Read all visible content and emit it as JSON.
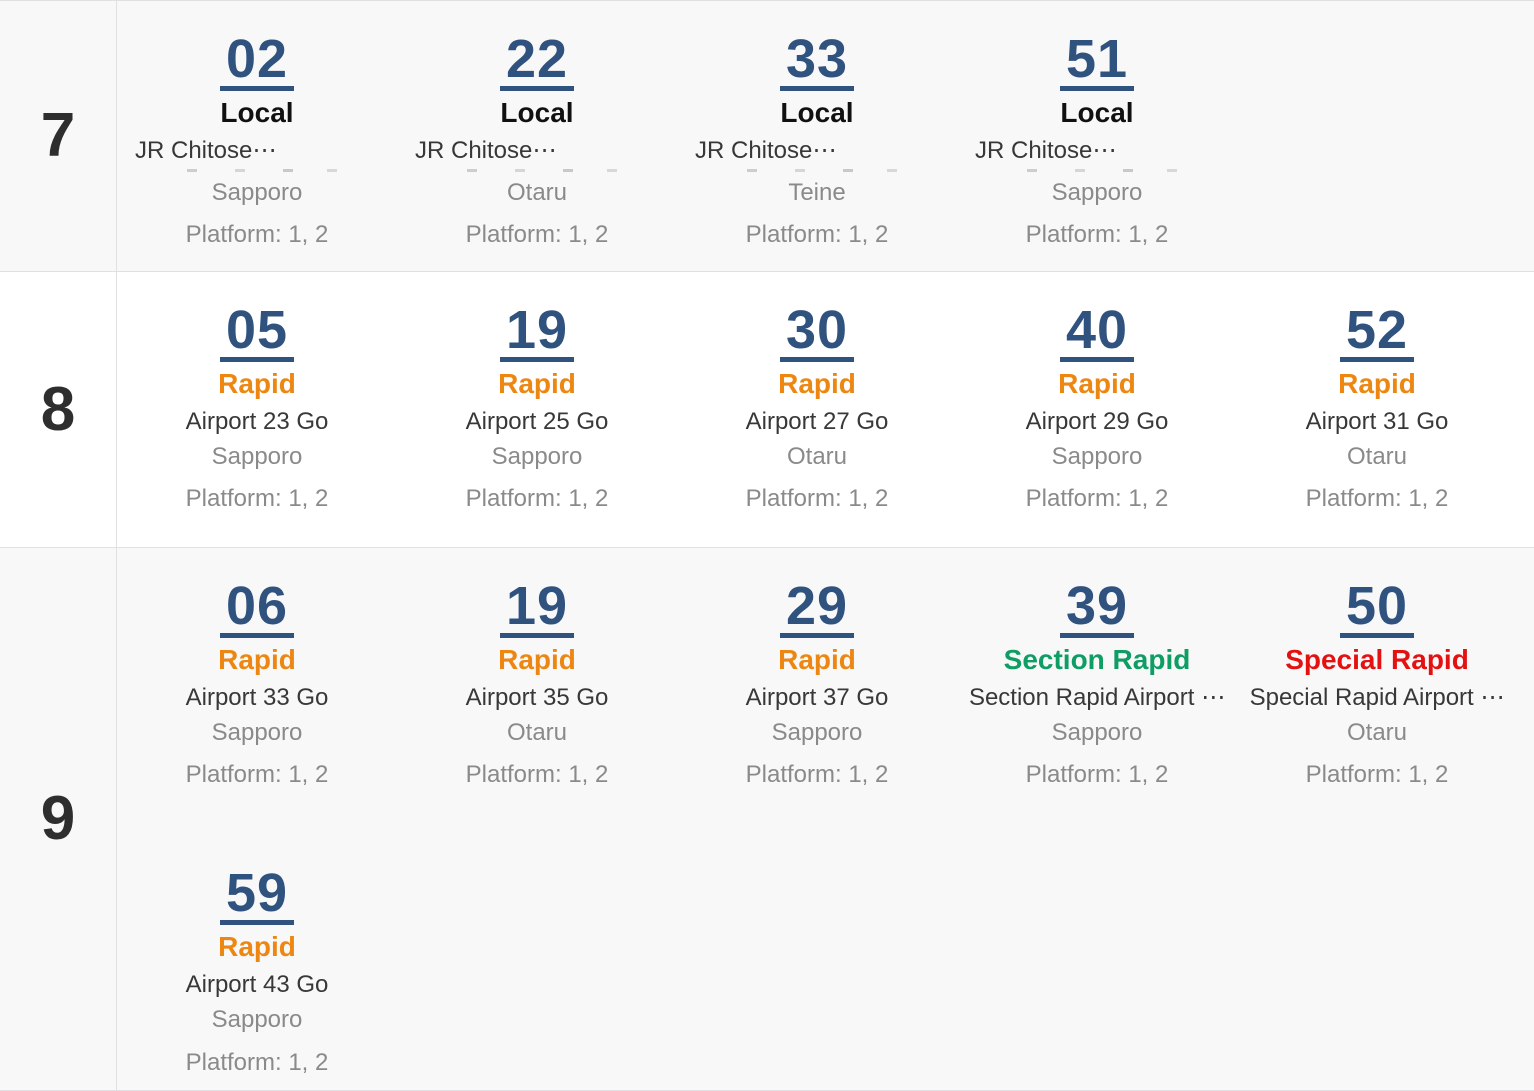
{
  "colors": {
    "minute_link": "#30527E",
    "local": "#111111",
    "rapid": "#ED8712",
    "section_rapid": "#0E9D63",
    "special_rapid": "#E41111",
    "hour_label": "#2E2E2E",
    "train_name": "#383838",
    "secondary_text": "#8A8A8A",
    "row_alt_background": "#F8F8F9",
    "border": "#E1E1E3"
  },
  "timetable": {
    "hours": [
      {
        "hour": "7",
        "trains": [
          {
            "minute": "02",
            "type": "Local",
            "type_key": "local",
            "name": "JR Chitose⋯",
            "name_clipped": true,
            "destination": "Sapporo",
            "platform": "Platform: 1, 2"
          },
          {
            "minute": "22",
            "type": "Local",
            "type_key": "local",
            "name": "JR Chitose⋯",
            "name_clipped": true,
            "destination": "Otaru",
            "platform": "Platform: 1, 2"
          },
          {
            "minute": "33",
            "type": "Local",
            "type_key": "local",
            "name": "JR Chitose⋯",
            "name_clipped": true,
            "destination": "Teine",
            "platform": "Platform: 1, 2"
          },
          {
            "minute": "51",
            "type": "Local",
            "type_key": "local",
            "name": "JR Chitose⋯",
            "name_clipped": true,
            "destination": "Sapporo",
            "platform": "Platform: 1, 2"
          }
        ]
      },
      {
        "hour": "8",
        "trains": [
          {
            "minute": "05",
            "type": "Rapid",
            "type_key": "rapid",
            "name": "Airport 23 Go",
            "name_clipped": false,
            "destination": "Sapporo",
            "platform": "Platform: 1, 2"
          },
          {
            "minute": "19",
            "type": "Rapid",
            "type_key": "rapid",
            "name": "Airport 25 Go",
            "name_clipped": false,
            "destination": "Sapporo",
            "platform": "Platform: 1, 2"
          },
          {
            "minute": "30",
            "type": "Rapid",
            "type_key": "rapid",
            "name": "Airport 27 Go",
            "name_clipped": false,
            "destination": "Otaru",
            "platform": "Platform: 1, 2"
          },
          {
            "minute": "40",
            "type": "Rapid",
            "type_key": "rapid",
            "name": "Airport 29 Go",
            "name_clipped": false,
            "destination": "Sapporo",
            "platform": "Platform: 1, 2"
          },
          {
            "minute": "52",
            "type": "Rapid",
            "type_key": "rapid",
            "name": "Airport 31 Go",
            "name_clipped": false,
            "destination": "Otaru",
            "platform": "Platform: 1, 2"
          }
        ]
      },
      {
        "hour": "9",
        "trains": [
          {
            "minute": "06",
            "type": "Rapid",
            "type_key": "rapid",
            "name": "Airport 33 Go",
            "name_clipped": false,
            "destination": "Sapporo",
            "platform": "Platform: 1, 2"
          },
          {
            "minute": "19",
            "type": "Rapid",
            "type_key": "rapid",
            "name": "Airport 35 Go",
            "name_clipped": false,
            "destination": "Otaru",
            "platform": "Platform: 1, 2"
          },
          {
            "minute": "29",
            "type": "Rapid",
            "type_key": "rapid",
            "name": "Airport 37 Go",
            "name_clipped": false,
            "destination": "Sapporo",
            "platform": "Platform: 1, 2"
          },
          {
            "minute": "39",
            "type": "Section Rapid",
            "type_key": "section_rapid",
            "name": "Section Rapid Airport ⋯",
            "name_clipped": false,
            "destination": "Sapporo",
            "platform": "Platform: 1, 2"
          },
          {
            "minute": "50",
            "type": "Special Rapid",
            "type_key": "special_rapid",
            "name": "Special Rapid Airport ⋯",
            "name_clipped": false,
            "destination": "Otaru",
            "platform": "Platform: 1, 2"
          },
          {
            "minute": "59",
            "type": "Rapid",
            "type_key": "rapid",
            "name": "Airport 43 Go",
            "name_clipped": false,
            "destination": "Sapporo",
            "platform": "Platform: 1, 2"
          }
        ]
      }
    ]
  }
}
